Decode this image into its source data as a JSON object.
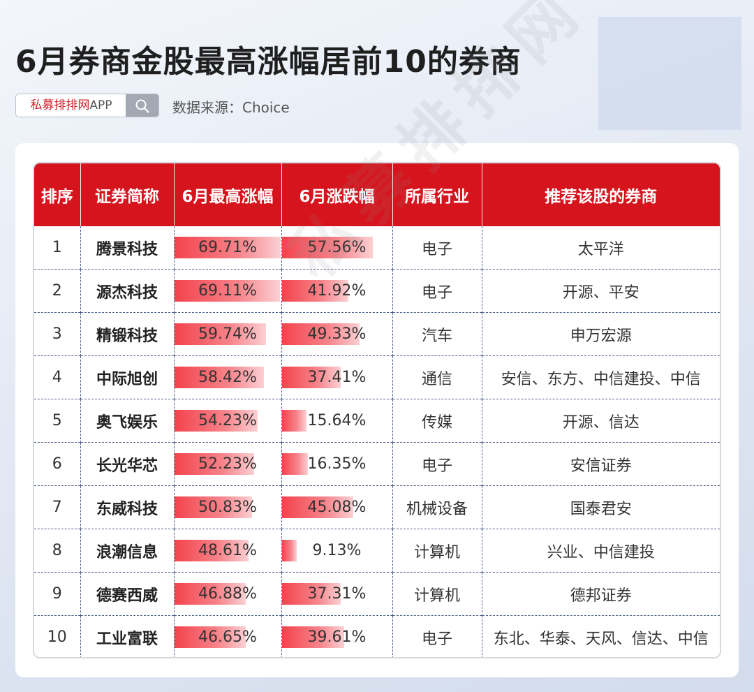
{
  "title": "6月券商金股最高涨幅居前10的券商",
  "search": {
    "brand_red": "私募排排网",
    "brand_grey": "APP",
    "icon": "search-icon"
  },
  "source_text": "数据来源：Choice",
  "watermark": "私募排排网",
  "colors": {
    "header_bg": "#d6141d",
    "bar_start": "#f3434c",
    "bar_end": "#fbd0d3"
  },
  "chart_data": {
    "type": "table",
    "bar_scale_max": 70,
    "columns": [
      "排序",
      "证券简称",
      "6月最高涨幅",
      "6月涨跌幅",
      "所属行业",
      "推荐该股的券商"
    ],
    "rows": [
      {
        "rank": "1",
        "name": "腾景科技",
        "max_gain": 69.71,
        "max_gain_label": "69.71%",
        "change": 57.56,
        "change_label": "57.56%",
        "industry": "电子",
        "brokers": "太平洋"
      },
      {
        "rank": "2",
        "name": "源杰科技",
        "max_gain": 69.11,
        "max_gain_label": "69.11%",
        "change": 41.92,
        "change_label": "41.92%",
        "industry": "电子",
        "brokers": "开源、平安"
      },
      {
        "rank": "3",
        "name": "精锻科技",
        "max_gain": 59.74,
        "max_gain_label": "59.74%",
        "change": 49.33,
        "change_label": "49.33%",
        "industry": "汽车",
        "brokers": "申万宏源"
      },
      {
        "rank": "4",
        "name": "中际旭创",
        "max_gain": 58.42,
        "max_gain_label": "58.42%",
        "change": 37.41,
        "change_label": "37.41%",
        "industry": "通信",
        "brokers": "安信、东方、中信建投、中信"
      },
      {
        "rank": "5",
        "name": "奥飞娱乐",
        "max_gain": 54.23,
        "max_gain_label": "54.23%",
        "change": 15.64,
        "change_label": "15.64%",
        "industry": "传媒",
        "brokers": "开源、信达"
      },
      {
        "rank": "6",
        "name": "长光华芯",
        "max_gain": 52.23,
        "max_gain_label": "52.23%",
        "change": 16.35,
        "change_label": "16.35%",
        "industry": "电子",
        "brokers": "安信证券"
      },
      {
        "rank": "7",
        "name": "东威科技",
        "max_gain": 50.83,
        "max_gain_label": "50.83%",
        "change": 45.08,
        "change_label": "45.08%",
        "industry": "机械设备",
        "brokers": "国泰君安"
      },
      {
        "rank": "8",
        "name": "浪潮信息",
        "max_gain": 48.61,
        "max_gain_label": "48.61%",
        "change": 9.13,
        "change_label": "9.13%",
        "industry": "计算机",
        "brokers": "兴业、中信建投"
      },
      {
        "rank": "9",
        "name": "德赛西威",
        "max_gain": 46.88,
        "max_gain_label": "46.88%",
        "change": 37.31,
        "change_label": "37.31%",
        "industry": "计算机",
        "brokers": "德邦证券"
      },
      {
        "rank": "10",
        "name": "工业富联",
        "max_gain": 46.65,
        "max_gain_label": "46.65%",
        "change": 39.61,
        "change_label": "39.61%",
        "industry": "电子",
        "brokers": "东北、华泰、天风、信达、中信"
      }
    ]
  }
}
